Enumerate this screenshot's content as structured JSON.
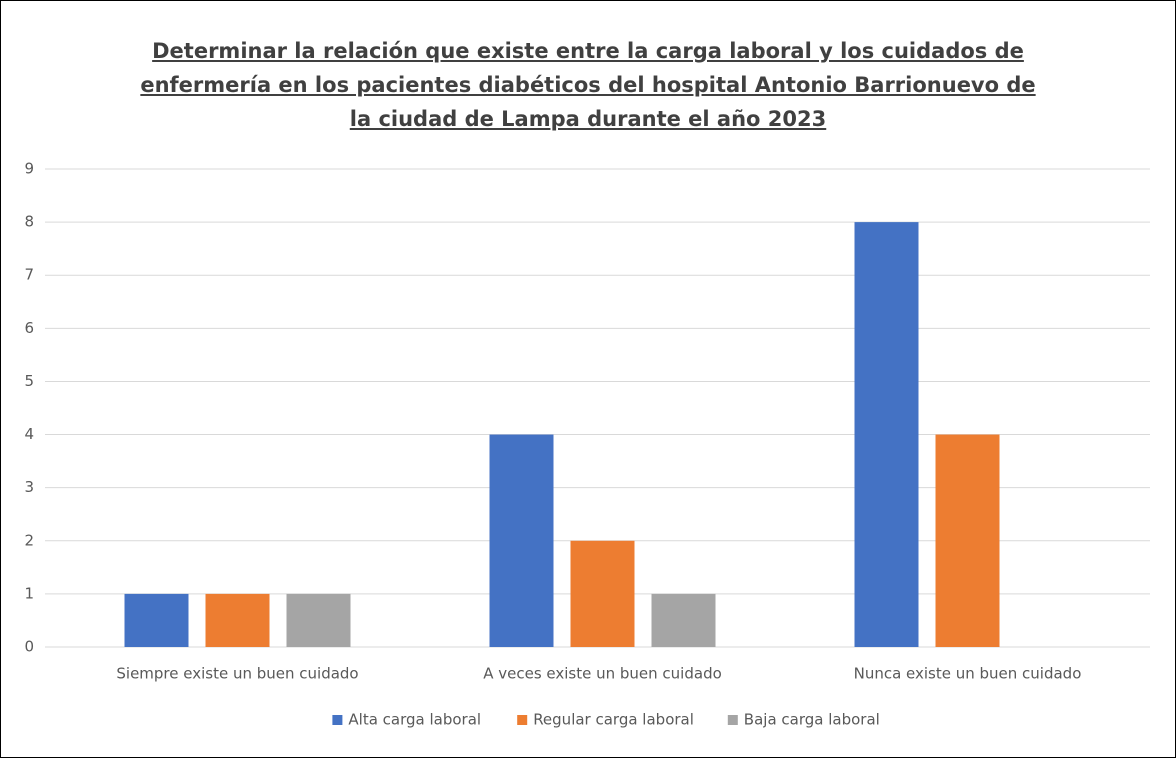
{
  "chart_data": {
    "type": "bar",
    "title": "Determinar la relación que existe entre la carga laboral y los cuidados de enfermería en los pacientes diabéticos del hospital Antonio Barrionuevo de la ciudad de Lampa durante el año 2023",
    "categories": [
      "Siempre existe un buen cuidado",
      "A veces existe un buen cuidado",
      "Nunca existe un buen cuidado"
    ],
    "series": [
      {
        "name": "Alta carga laboral",
        "color": "#4472c4",
        "values": [
          1,
          4,
          8
        ]
      },
      {
        "name": "Regular carga laboral",
        "color": "#ed7d31",
        "values": [
          1,
          2,
          4
        ]
      },
      {
        "name": "Baja carga laboral",
        "color": "#a5a5a5",
        "values": [
          1,
          1,
          0
        ]
      }
    ],
    "ylim": [
      0,
      9
    ],
    "yticks": [
      0,
      1,
      2,
      3,
      4,
      5,
      6,
      7,
      8,
      9
    ],
    "grid": true,
    "legend": "bottom"
  }
}
